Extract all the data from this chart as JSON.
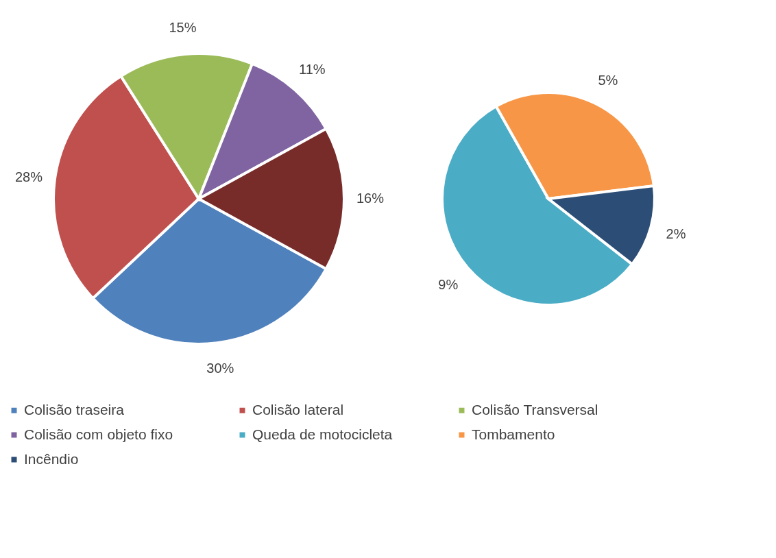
{
  "chart_data": [
    {
      "type": "pie",
      "categories": [
        "Colisão traseira",
        "Colisão lateral",
        "Colisão Transversal",
        "Colisão com objeto fixo",
        null
      ],
      "values": [
        30,
        28,
        15,
        11,
        16
      ],
      "colors": [
        "#4f81bd",
        "#c0504d",
        "#9bbb59",
        "#8064a2",
        "#772c2a"
      ],
      "value_labels": [
        "30%",
        "28%",
        "15%",
        "11%",
        "16%"
      ],
      "legend": "bottom"
    },
    {
      "type": "pie",
      "categories": [
        "Queda de motocicleta",
        "Tombamento",
        "Incêndio"
      ],
      "values": [
        9,
        5,
        2
      ],
      "colors": [
        "#4bacc6",
        "#f79646",
        "#2c4d75"
      ],
      "value_labels": [
        "9%",
        "5%",
        "2%"
      ],
      "legend": "bottom"
    }
  ]
}
